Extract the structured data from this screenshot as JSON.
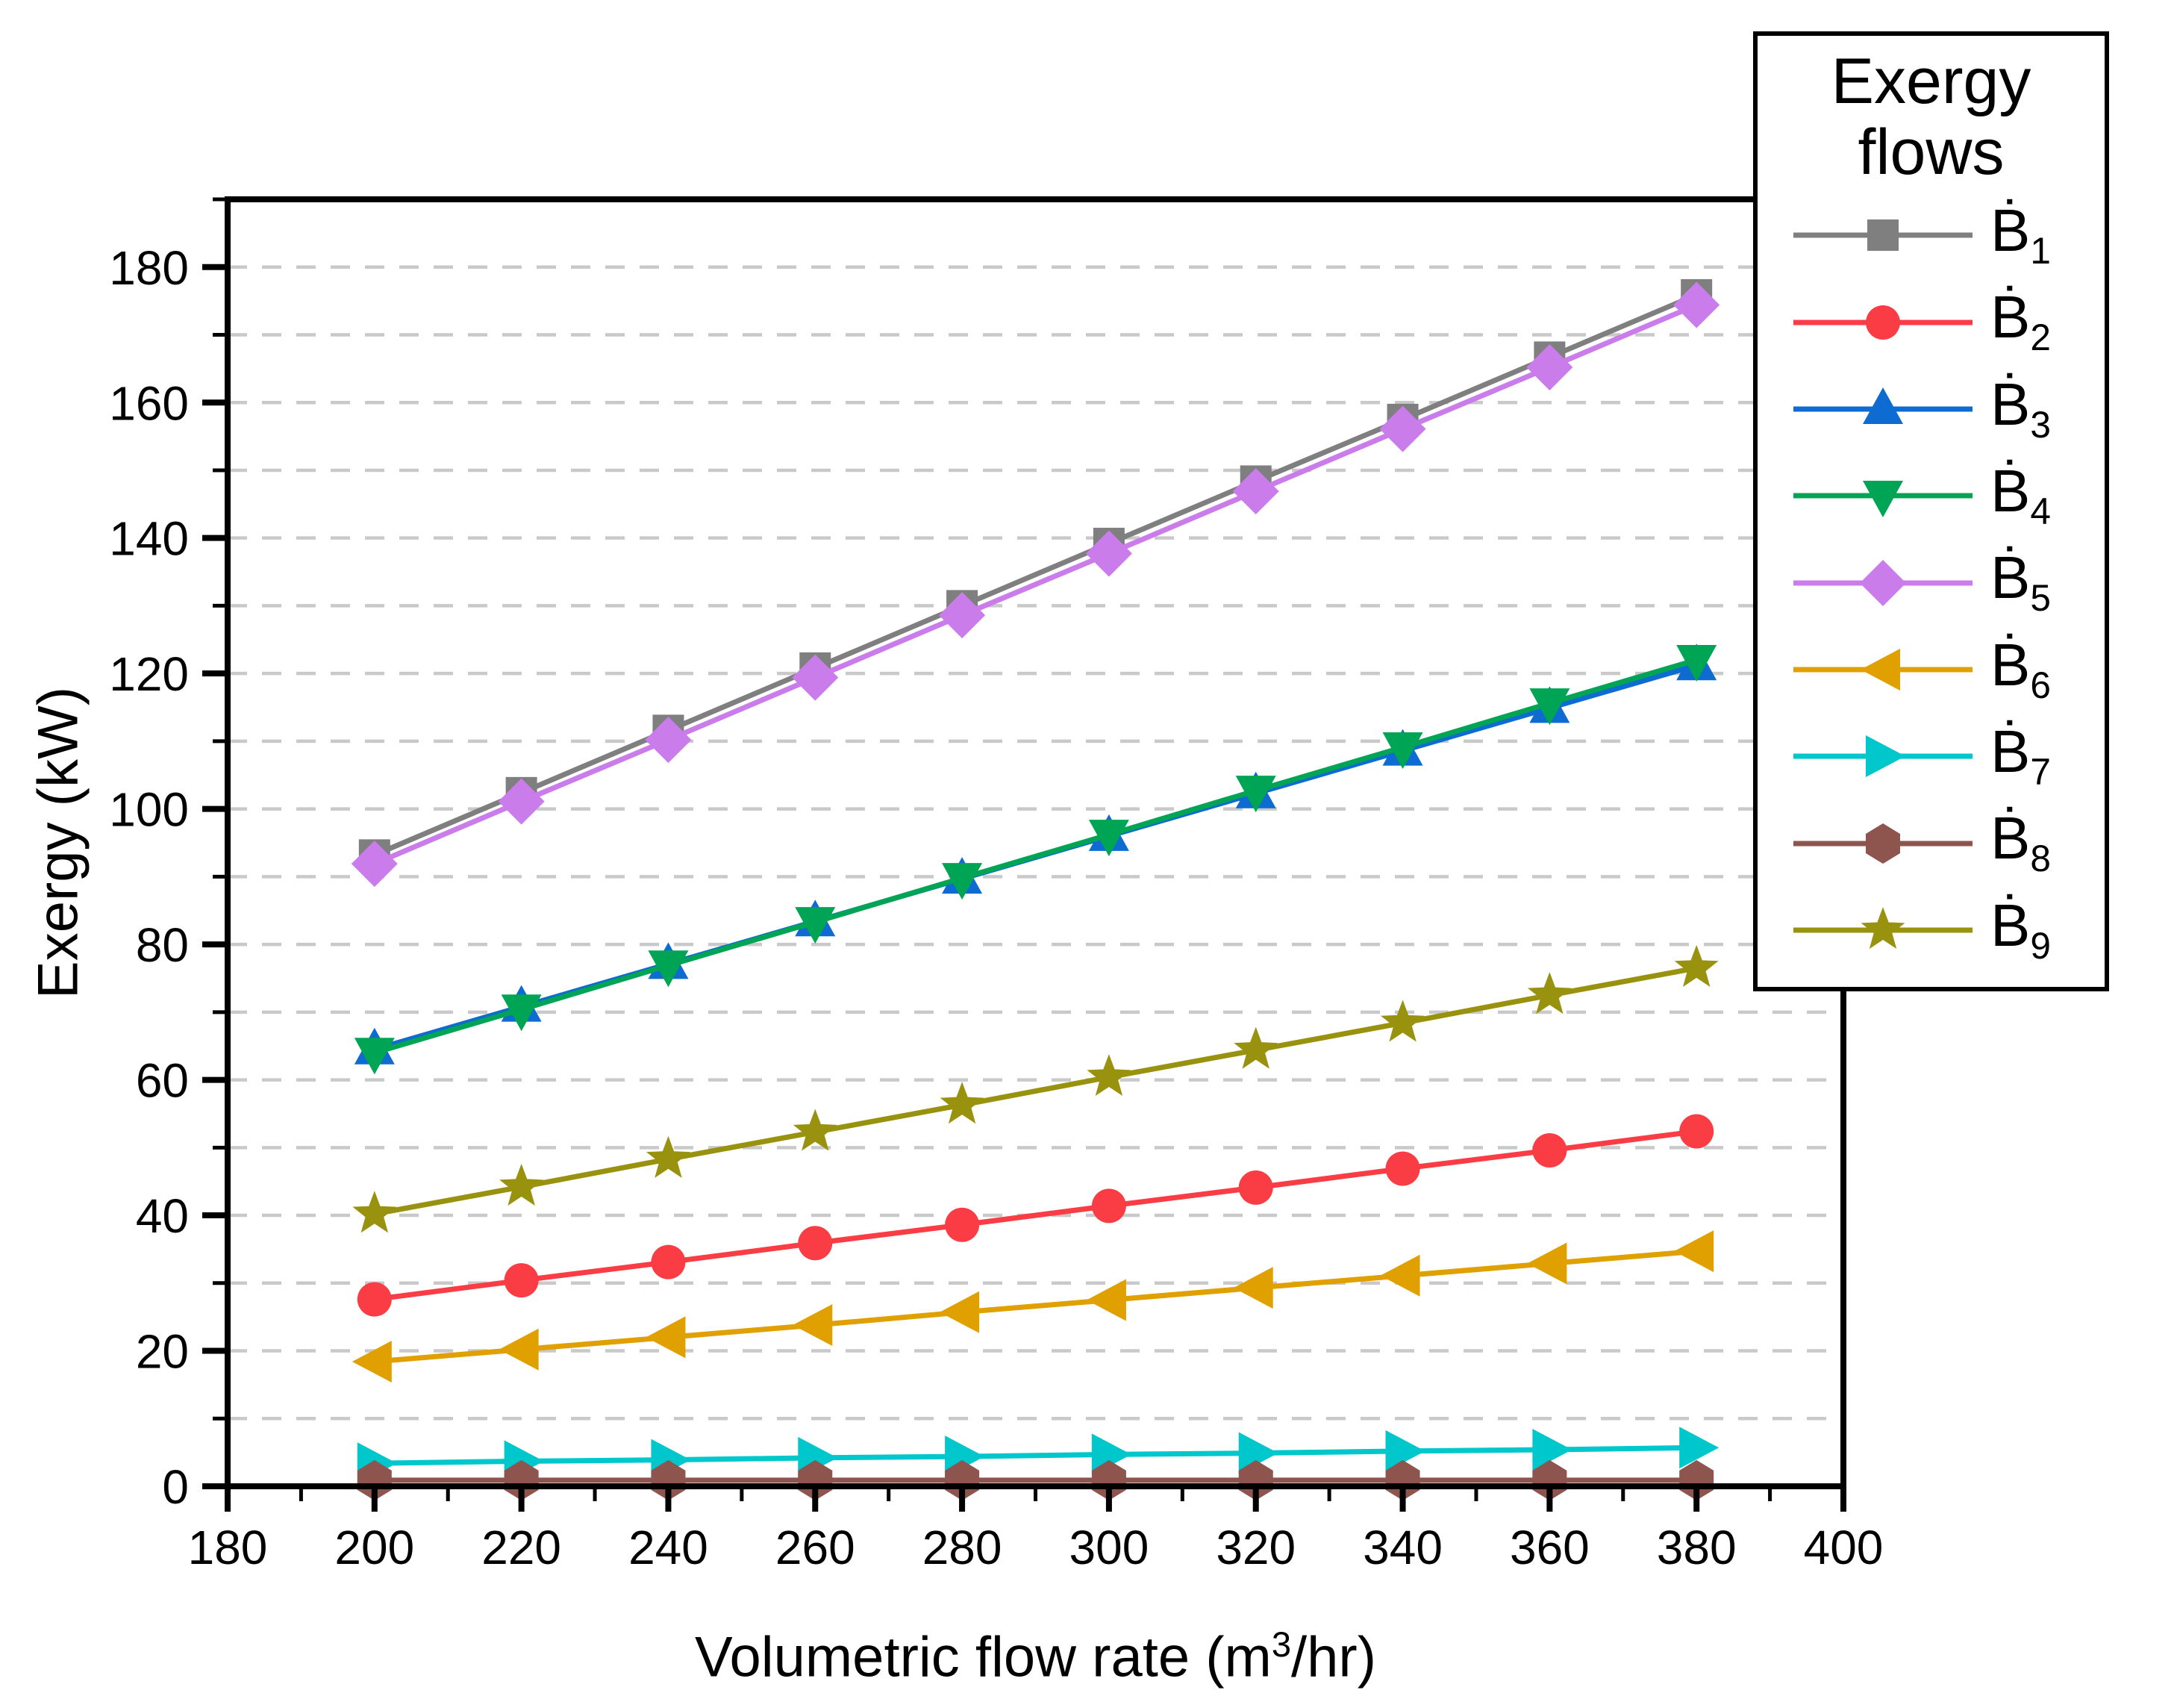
{
  "chart_data": {
    "type": "line",
    "xlabel_parts": {
      "pre": "Volumetric flow rate (m",
      "sup": "3",
      "post": "/hr)"
    },
    "ylabel": "Exergy (kW)",
    "xlim": [
      180,
      400
    ],
    "ylim": [
      0,
      190
    ],
    "x_ticks_major": [
      180,
      200,
      220,
      240,
      260,
      280,
      300,
      320,
      340,
      360,
      380,
      400
    ],
    "x_ticks_minor": [
      190,
      210,
      230,
      250,
      270,
      290,
      310,
      330,
      350,
      370,
      390
    ],
    "y_ticks_major": [
      0,
      20,
      40,
      60,
      80,
      100,
      120,
      140,
      160,
      180
    ],
    "y_ticks_minor": [
      10,
      30,
      50,
      70,
      90,
      110,
      130,
      150,
      170,
      190
    ],
    "grid": {
      "horizontal_step": 10,
      "style": "dashed",
      "color": "#c9c9c9"
    },
    "legend": {
      "title": "Exergy flows",
      "position": "top-right"
    },
    "x": [
      200,
      220,
      240,
      260,
      280,
      300,
      320,
      340,
      360,
      380
    ],
    "series": [
      {
        "base": "Ḃ",
        "sub": "1",
        "marker": "square",
        "color": "#7f7f7f",
        "values": [
          93.2,
          102.4,
          111.6,
          120.8,
          130.0,
          139.2,
          148.4,
          157.5,
          166.7,
          175.9
        ]
      },
      {
        "base": "Ḃ",
        "sub": "2",
        "marker": "circle",
        "color": "#fa3c44",
        "values": [
          27.6,
          30.4,
          33.1,
          35.9,
          38.6,
          41.4,
          44.1,
          46.9,
          49.6,
          52.4
        ]
      },
      {
        "base": "Ḃ",
        "sub": "3",
        "marker": "triangle-up",
        "color": "#0d6bd2",
        "values": [
          64.5,
          70.8,
          77.1,
          83.4,
          89.7,
          96.0,
          102.3,
          108.6,
          114.9,
          121.2
        ]
      },
      {
        "base": "Ḃ",
        "sub": "4",
        "marker": "triangle-down",
        "color": "#00a455",
        "values": [
          64.0,
          70.4,
          76.9,
          83.3,
          89.8,
          96.2,
          102.7,
          109.1,
          115.6,
          122.0
        ]
      },
      {
        "base": "Ḃ",
        "sub": "5",
        "marker": "diamond",
        "color": "#ca7ceb",
        "values": [
          91.9,
          101.1,
          110.2,
          119.4,
          128.6,
          137.7,
          146.9,
          156.1,
          165.2,
          174.4
        ]
      },
      {
        "base": "Ḃ",
        "sub": "6",
        "marker": "triangle-left",
        "color": "#dfa000",
        "values": [
          18.4,
          20.2,
          22.0,
          23.8,
          25.7,
          27.5,
          29.3,
          31.1,
          32.9,
          34.7
        ]
      },
      {
        "base": "Ḃ",
        "sub": "7",
        "marker": "triangle-right",
        "color": "#00c7cb",
        "values": [
          3.4,
          3.7,
          3.9,
          4.2,
          4.4,
          4.7,
          4.9,
          5.2,
          5.4,
          5.7
        ]
      },
      {
        "base": "Ḃ",
        "sub": "8",
        "marker": "hexagon",
        "color": "#8e544e",
        "values": [
          0.9,
          0.9,
          0.9,
          0.9,
          0.9,
          0.9,
          0.9,
          0.9,
          0.9,
          0.9
        ]
      },
      {
        "base": "Ḃ",
        "sub": "9",
        "marker": "star",
        "color": "#98920f",
        "values": [
          40.2,
          44.2,
          48.3,
          52.3,
          56.3,
          60.4,
          64.4,
          68.4,
          72.5,
          76.5
        ]
      }
    ]
  }
}
